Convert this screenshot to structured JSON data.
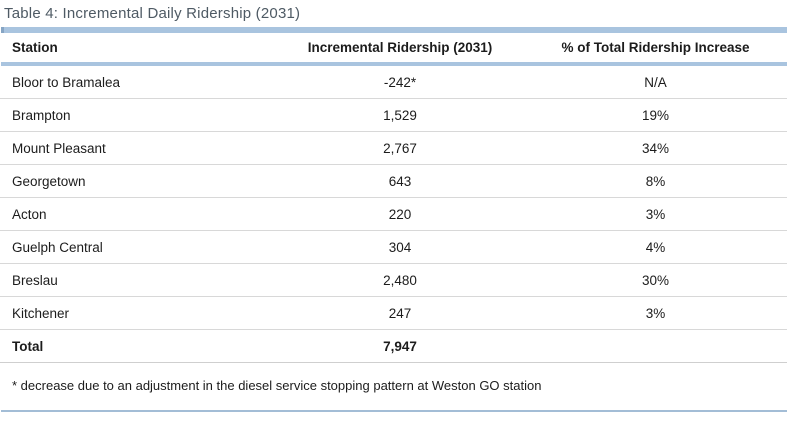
{
  "title": "Table 4: Incremental Daily Ridership (2031)",
  "table": {
    "columns": [
      "Station",
      "Incremental Ridership (2031)",
      "% of Total Ridership Increase"
    ],
    "rows": [
      {
        "station": "Bloor to Bramalea",
        "ridership": "-242*",
        "percent": "N/A"
      },
      {
        "station": "Brampton",
        "ridership": "1,529",
        "percent": "19%"
      },
      {
        "station": "Mount Pleasant",
        "ridership": "2,767",
        "percent": "34%"
      },
      {
        "station": "Georgetown",
        "ridership": "643",
        "percent": "8%"
      },
      {
        "station": "Acton",
        "ridership": "220",
        "percent": "3%"
      },
      {
        "station": "Guelph Central",
        "ridership": "304",
        "percent": "4%"
      },
      {
        "station": "Breslau",
        "ridership": "2,480",
        "percent": "30%"
      },
      {
        "station": "Kitchener",
        "ridership": "247",
        "percent": "3%"
      }
    ],
    "total": {
      "station": "Total",
      "ridership": "7,947",
      "percent": ""
    },
    "footnote": "* decrease due to an adjustment in the diesel service stopping pattern at Weston GO station"
  },
  "colors": {
    "accent_bar": "#a9c4df",
    "accent_bar_cap": "#86a5c4",
    "row_divider": "#d8d8d8",
    "bottom_line": "#a3bdd6",
    "title_text": "#4e5a64",
    "body_text": "#1c1c1c"
  }
}
